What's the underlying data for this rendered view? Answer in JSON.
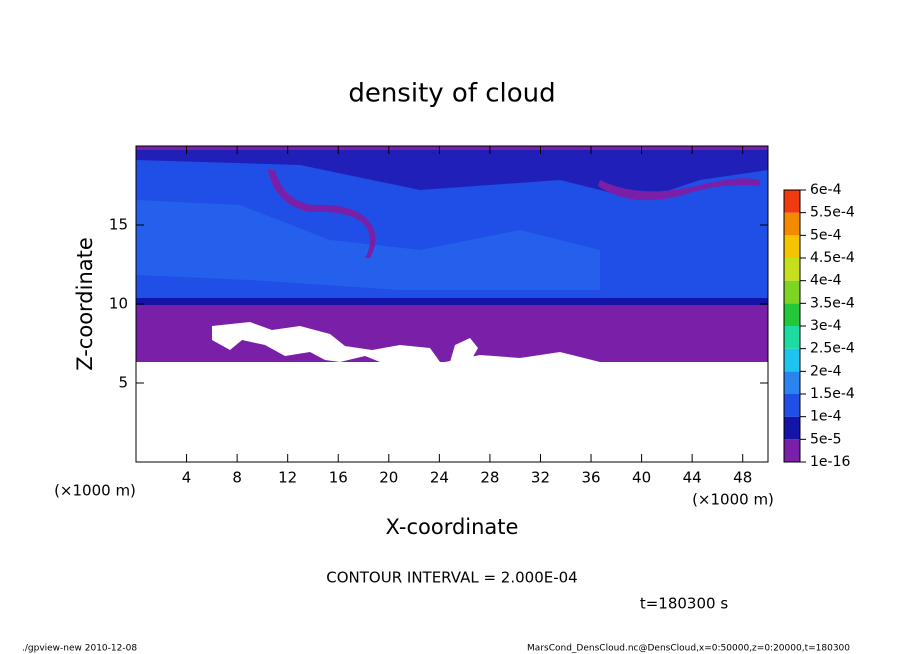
{
  "chart_data": {
    "type": "contour",
    "title": "density of cloud",
    "x_label": "X-coordinate",
    "y_label": "Z-coordinate",
    "x_units": "(×1000 m)",
    "y_units": "(×1000 m)",
    "xlim": [
      0,
      50
    ],
    "xticks": [
      4,
      8,
      12,
      16,
      20,
      24,
      28,
      32,
      36,
      40,
      44,
      48
    ],
    "ylim": [
      0,
      20
    ],
    "yticks": [
      5,
      10,
      15
    ],
    "colorbar": {
      "levels": [
        {
          "value": 1e-16,
          "label": "1e-16"
        },
        {
          "value": 5e-05,
          "label": "5e-5"
        },
        {
          "value": 0.0001,
          "label": "1e-4"
        },
        {
          "value": 0.00015,
          "label": "1.5e-4"
        },
        {
          "value": 0.0002,
          "label": "2e-4"
        },
        {
          "value": 0.00025,
          "label": "2.5e-4"
        },
        {
          "value": 0.0003,
          "label": "3e-4"
        },
        {
          "value": 0.00035,
          "label": "3.5e-4"
        },
        {
          "value": 0.0004,
          "label": "4e-4"
        },
        {
          "value": 0.00045,
          "label": "4.5e-4"
        },
        {
          "value": 0.0005,
          "label": "5e-4"
        },
        {
          "value": 0.00055,
          "label": "5.5e-4"
        },
        {
          "value": 0.0006,
          "label": "6e-4"
        }
      ],
      "colors": [
        "#7a1fa8",
        "#1414a8",
        "#1f4fe6",
        "#2a84f0",
        "#1ec4ee",
        "#1edca0",
        "#22c83a",
        "#7ed422",
        "#c6e01e",
        "#f4c400",
        "#f48a00",
        "#f03a10",
        "#f08a8a"
      ]
    },
    "contour_interval": "CONTOUR INTERVAL = 2.000E-04",
    "time_label": "t=180300 s",
    "footer_left": "./gpview-new  2010-12-08",
    "footer_right": "MarsCond_DensCloud.nc@DensCloud,x=0:50000,z=0:20000,t=180300"
  }
}
